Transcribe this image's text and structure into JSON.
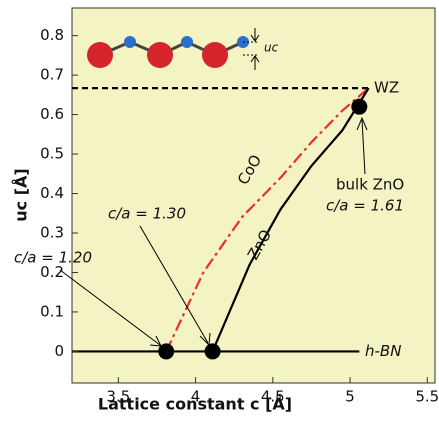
{
  "chart_data": {
    "type": "line",
    "xlabel": "Lattice constant c [Å]",
    "ylabel": "uc [Å]",
    "xlim": [
      3.2,
      5.55
    ],
    "ylim": [
      -0.08,
      0.87
    ],
    "xticks": [
      3.5,
      4,
      4.5,
      5,
      5.5
    ],
    "yticks": [
      0,
      0.1,
      0.2,
      0.3,
      0.4,
      0.5,
      0.6,
      0.7,
      0.8
    ],
    "series": [
      {
        "name": "h-BN",
        "color": "#000000",
        "style": "solid",
        "x": [
          3.2,
          5.06
        ],
        "values": [
          0,
          0
        ]
      },
      {
        "name": "WZ",
        "color": "#000000",
        "style": "dashed",
        "x": [
          3.2,
          5.12
        ],
        "values": [
          0.667,
          0.667
        ]
      },
      {
        "name": "CoO",
        "color": "#e8302a",
        "style": "dashdot",
        "x": [
          3.81,
          4.05,
          4.3,
          4.55,
          4.75,
          4.95,
          5.12
        ],
        "values": [
          0,
          0.2,
          0.34,
          0.44,
          0.53,
          0.61,
          0.667
        ]
      },
      {
        "name": "ZnO",
        "color": "#000000",
        "style": "solid",
        "x": [
          4.11,
          4.35,
          4.55,
          4.75,
          4.95,
          5.12
        ],
        "values": [
          0,
          0.22,
          0.36,
          0.47,
          0.56,
          0.667
        ]
      }
    ],
    "points": {
      "color": "#000000",
      "x": [
        3.81,
        4.11,
        5.06
      ],
      "values": [
        0,
        0,
        0.62
      ]
    },
    "annotations": [
      "c/a = 1.20",
      "c/a = 1.30",
      "bulk ZnO",
      "c/a = 1.61",
      "uc"
    ]
  }
}
